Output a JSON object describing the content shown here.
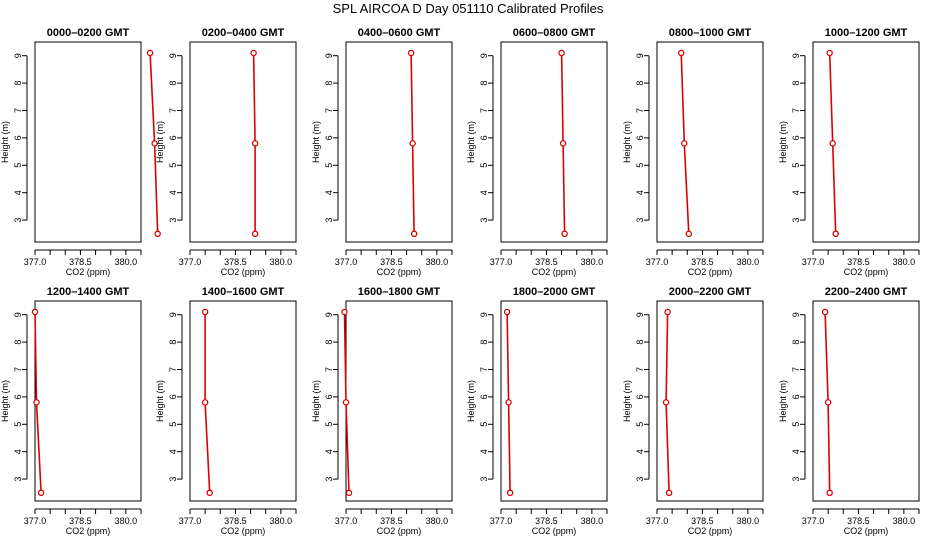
{
  "page": {
    "title": "SPL AIRCOA D  Day 051110  Calibrated Profiles"
  },
  "chart_data": {
    "type": "line",
    "layout": "grid of 12 panels, 2 rows x 6 columns",
    "xlabel": "CO2 (ppm)",
    "ylabel": "Height (m)",
    "xlim": [
      377.0,
      380.5
    ],
    "ylim": [
      2.2,
      9.5
    ],
    "x_ticks": [
      "377.0",
      "378.5",
      "380.0"
    ],
    "x_minor_ticks": [
      377.5,
      378.0,
      379.0,
      379.5,
      380.5
    ],
    "y_ticks": [
      "3",
      "4",
      "5",
      "6",
      "7",
      "8",
      "9"
    ],
    "series_color": "#dd0000",
    "heights": [
      9.1,
      5.8,
      2.5
    ],
    "panels": [
      {
        "title": "0000–0200 GMT",
        "co2": [
          380.8,
          380.95,
          381.05
        ]
      },
      {
        "title": "0200–0400 GMT",
        "co2": [
          379.1,
          379.15,
          379.15
        ]
      },
      {
        "title": "0400–0600 GMT",
        "co2": [
          379.15,
          379.2,
          379.25
        ]
      },
      {
        "title": "0600–0800 GMT",
        "co2": [
          379.0,
          379.05,
          379.1
        ]
      },
      {
        "title": "0800–1000 GMT",
        "co2": [
          377.8,
          377.9,
          378.05
        ]
      },
      {
        "title": "1000–1200 GMT",
        "co2": [
          377.55,
          377.65,
          377.75
        ]
      },
      {
        "title": "1200–1400 GMT",
        "co2": [
          377.0,
          377.05,
          377.2
        ]
      },
      {
        "title": "1400–1600 GMT",
        "co2": [
          377.5,
          377.5,
          377.65
        ]
      },
      {
        "title": "1600–1800 GMT",
        "co2": [
          376.95,
          377.0,
          377.1
        ]
      },
      {
        "title": "1800–2000 GMT",
        "co2": [
          377.2,
          377.25,
          377.3
        ]
      },
      {
        "title": "2000–2200 GMT",
        "co2": [
          377.35,
          377.3,
          377.4
        ]
      },
      {
        "title": "2200–2400 GMT",
        "co2": [
          377.4,
          377.5,
          377.55
        ]
      }
    ]
  }
}
